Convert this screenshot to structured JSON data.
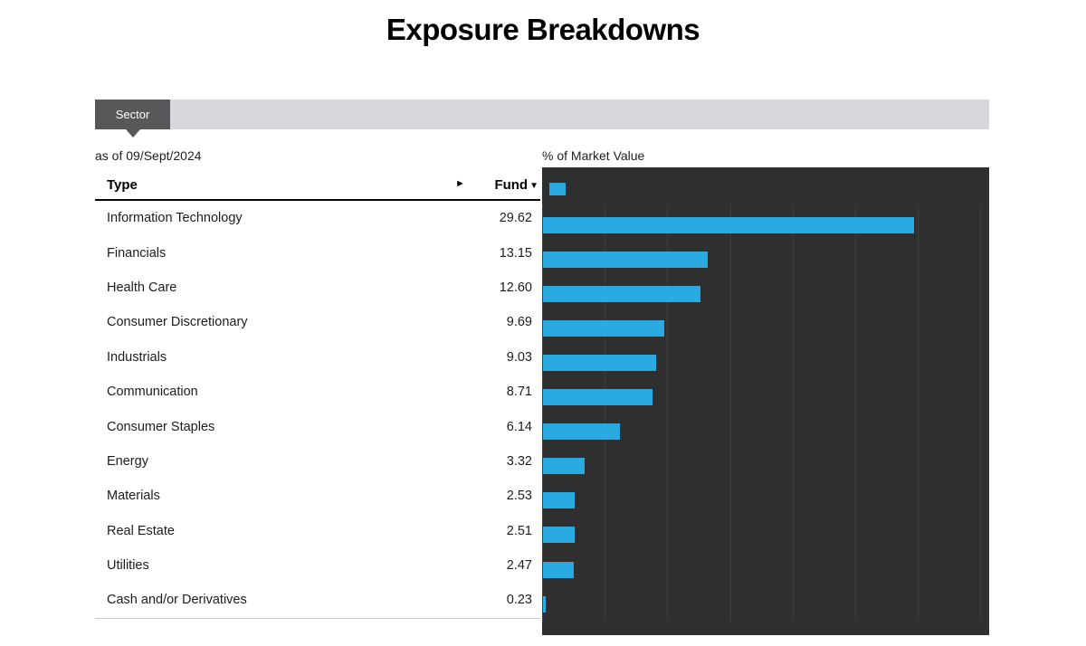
{
  "page": {
    "title": "Exposure Breakdowns"
  },
  "tab_bar": {
    "tabs": [
      {
        "label": "Sector",
        "active": true
      }
    ]
  },
  "table": {
    "as_of": "as of 09/Sept/2024",
    "columns": {
      "type": "Type",
      "fund": "Fund"
    },
    "sort_indicator": "▼",
    "scroll_arrow": "►",
    "rows": [
      {
        "label": "Information Technology",
        "value": "29.62"
      },
      {
        "label": "Financials",
        "value": "13.15"
      },
      {
        "label": "Health Care",
        "value": "12.60"
      },
      {
        "label": "Consumer Discretionary",
        "value": "9.69"
      },
      {
        "label": "Industrials",
        "value": "9.03"
      },
      {
        "label": "Communication",
        "value": "8.71"
      },
      {
        "label": "Consumer Staples",
        "value": "6.14"
      },
      {
        "label": "Energy",
        "value": "3.32"
      },
      {
        "label": "Materials",
        "value": "2.53"
      },
      {
        "label": "Real Estate",
        "value": "2.51"
      },
      {
        "label": "Utilities",
        "value": "2.47"
      },
      {
        "label": "Cash and/or Derivatives",
        "value": "0.23"
      }
    ]
  },
  "chart_data": {
    "type": "bar",
    "orientation": "horizontal",
    "title": "% of Market Value",
    "series": [
      {
        "name": "Fund",
        "color": "#29abe2"
      }
    ],
    "categories": [
      "Information Technology",
      "Financials",
      "Health Care",
      "Consumer Discretionary",
      "Industrials",
      "Communication",
      "Consumer Staples",
      "Energy",
      "Materials",
      "Real Estate",
      "Utilities",
      "Cash and/or Derivatives"
    ],
    "values": [
      29.62,
      13.15,
      12.6,
      9.69,
      9.03,
      8.71,
      6.14,
      3.32,
      2.53,
      2.51,
      2.47,
      0.23
    ],
    "xlim": [
      0,
      35.7
    ],
    "gridline_values": [
      5,
      10,
      15,
      20,
      25,
      30,
      35
    ],
    "grid": true,
    "legend_position": "top-left"
  },
  "colors": {
    "accent": "#29abe2",
    "chart_bg": "#2f2f2f",
    "tab_active_bg": "#58585a",
    "tab_bar_bg": "#d8d7dd"
  }
}
